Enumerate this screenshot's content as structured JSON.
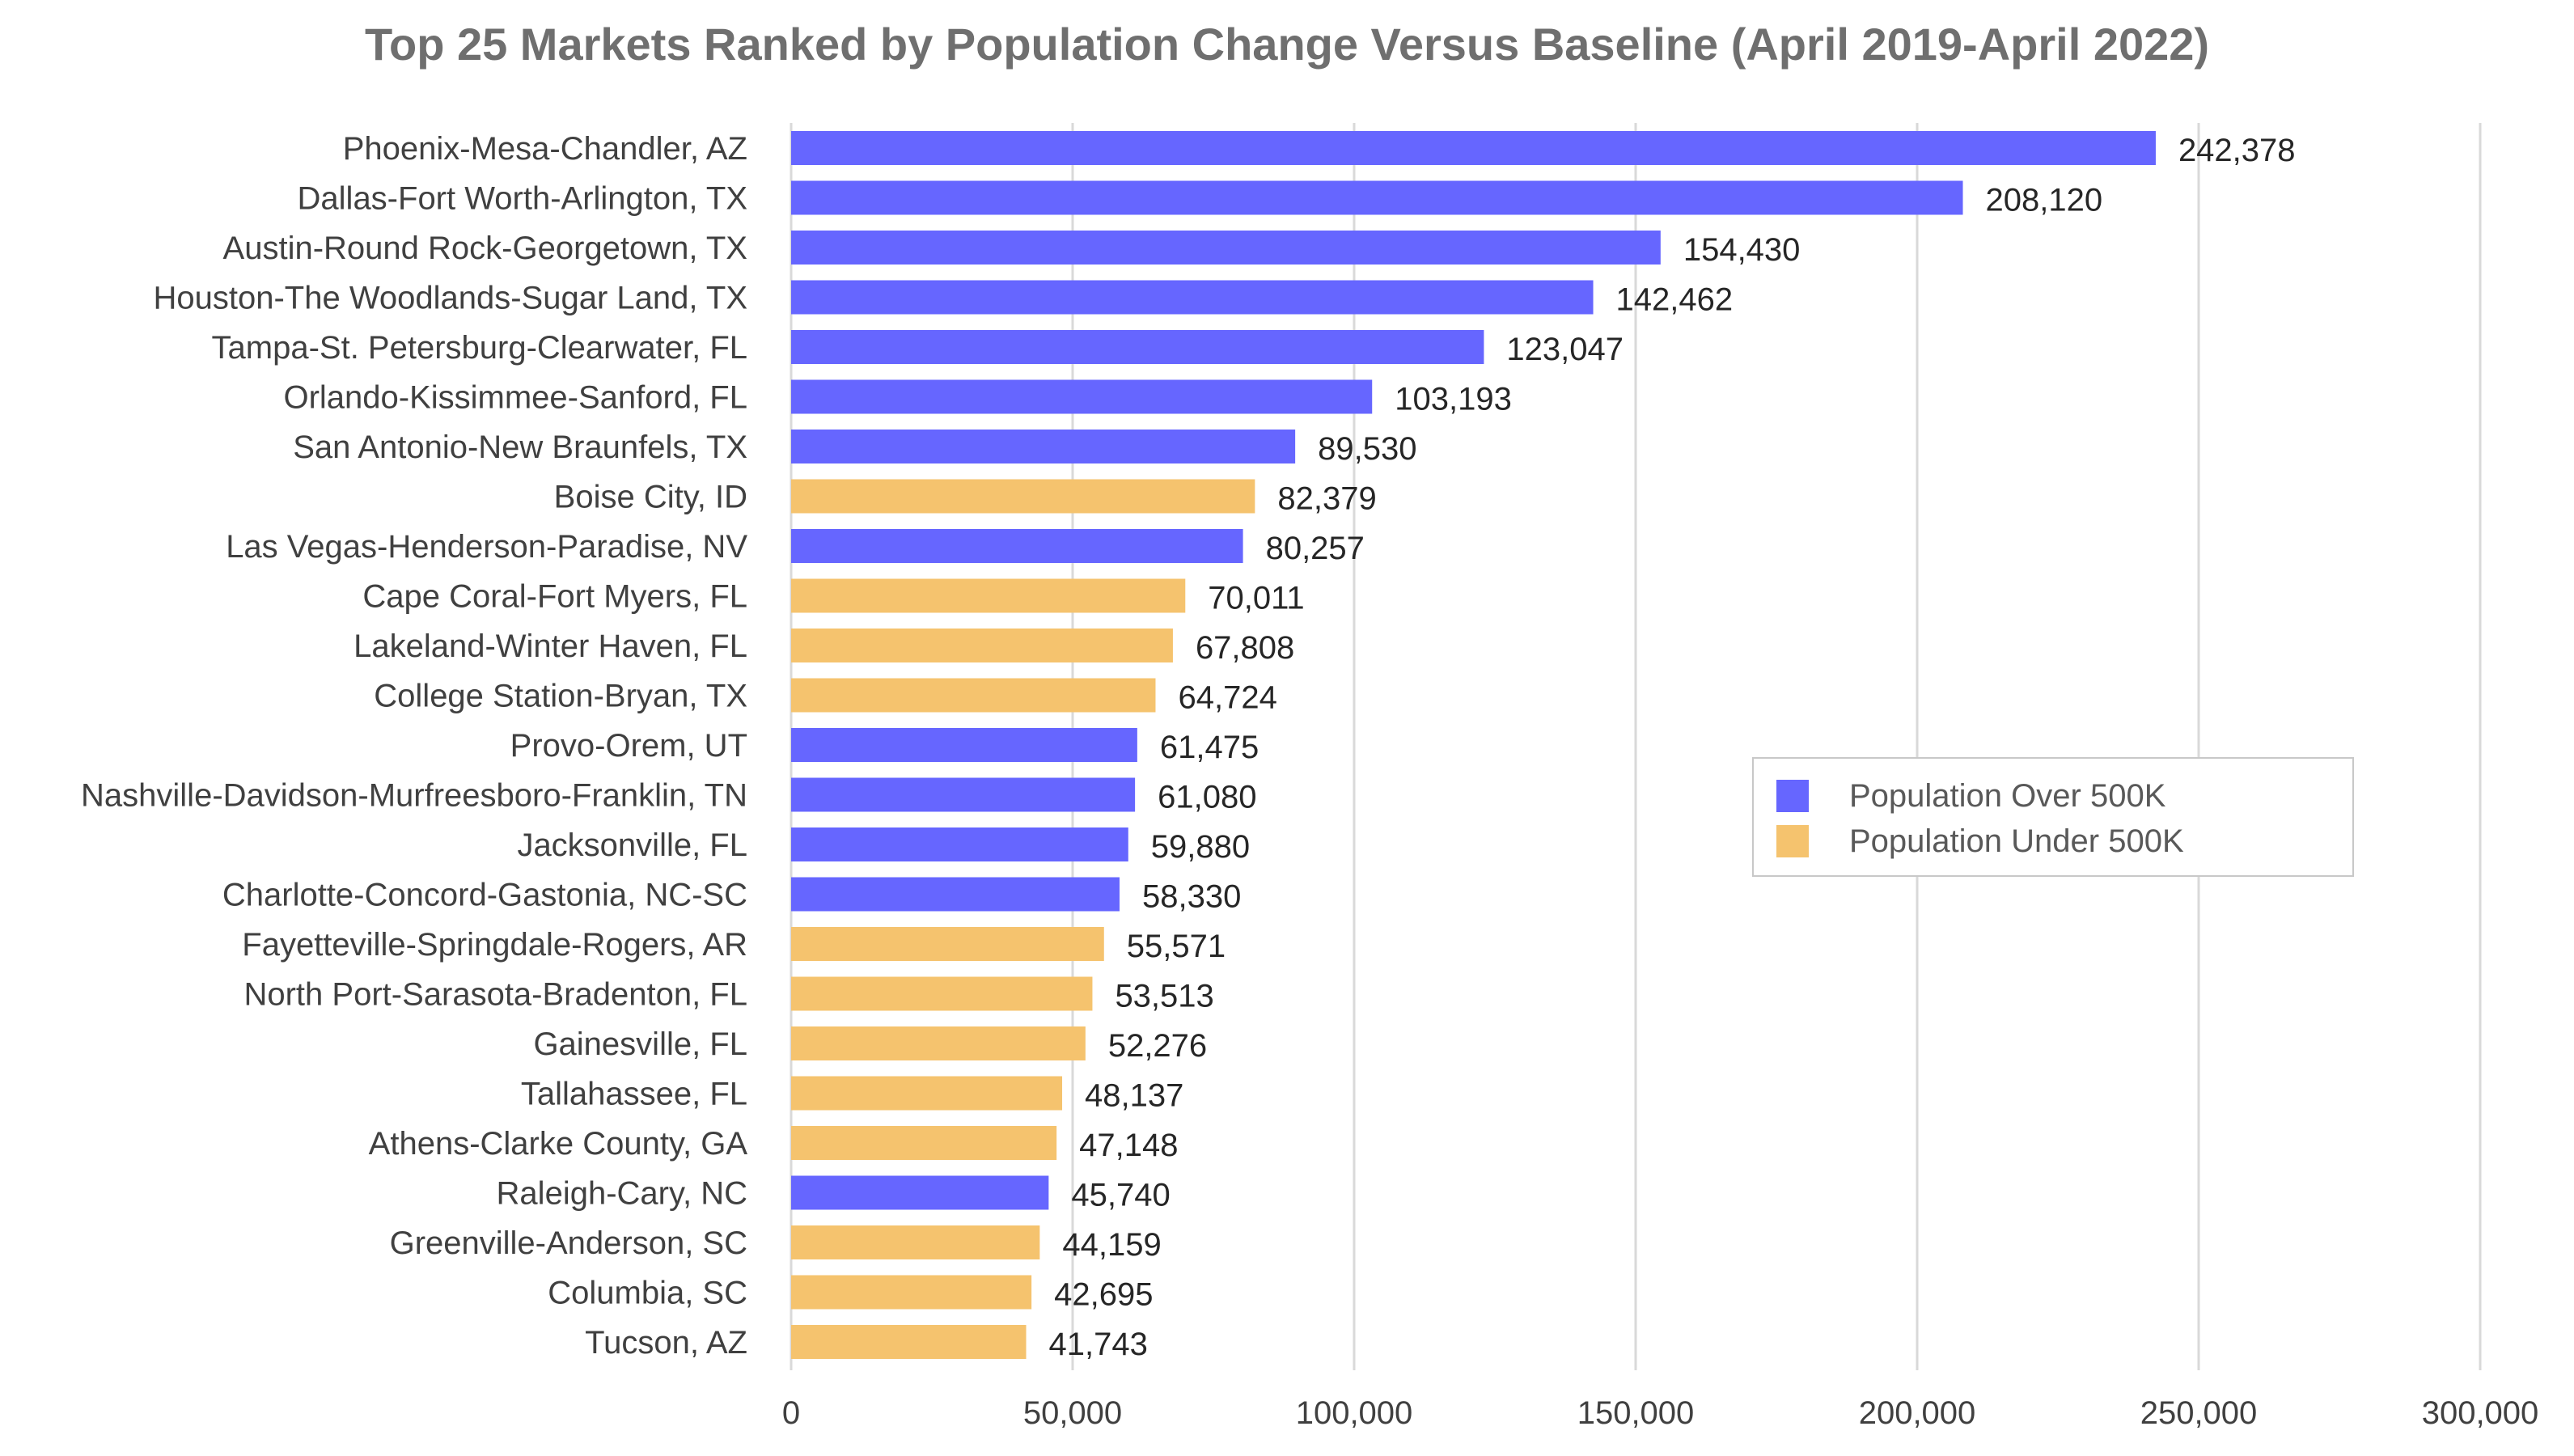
{
  "chart_data": {
    "type": "bar",
    "orientation": "horizontal",
    "title": "Top 25 Markets Ranked by Population Change Versus Baseline (April 2019-April 2022)",
    "xlim": [
      0,
      300000
    ],
    "xticks": [
      0,
      50000,
      100000,
      150000,
      200000,
      250000,
      300000
    ],
    "xtick_labels": [
      "0",
      "50,000",
      "100,000",
      "150,000",
      "200,000",
      "250,000",
      "300,000"
    ],
    "grid": true,
    "legend_position": "right",
    "series": [
      {
        "name": "Population Over 500K",
        "color": "#6666ff"
      },
      {
        "name": "Population Under 500K",
        "color": "#f5c36e"
      }
    ],
    "bars": [
      {
        "category": "Phoenix-Mesa-Chandler, AZ",
        "value": 242378,
        "label": "242,378",
        "series": 0
      },
      {
        "category": "Dallas-Fort Worth-Arlington, TX",
        "value": 208120,
        "label": "208,120",
        "series": 0
      },
      {
        "category": "Austin-Round Rock-Georgetown, TX",
        "value": 154430,
        "label": "154,430",
        "series": 0
      },
      {
        "category": "Houston-The Woodlands-Sugar Land, TX",
        "value": 142462,
        "label": "142,462",
        "series": 0
      },
      {
        "category": "Tampa-St. Petersburg-Clearwater, FL",
        "value": 123047,
        "label": "123,047",
        "series": 0
      },
      {
        "category": "Orlando-Kissimmee-Sanford, FL",
        "value": 103193,
        "label": "103,193",
        "series": 0
      },
      {
        "category": "San Antonio-New Braunfels, TX",
        "value": 89530,
        "label": "89,530",
        "series": 0
      },
      {
        "category": "Boise City, ID",
        "value": 82379,
        "label": "82,379",
        "series": 1
      },
      {
        "category": "Las Vegas-Henderson-Paradise, NV",
        "value": 80257,
        "label": "80,257",
        "series": 0
      },
      {
        "category": "Cape Coral-Fort Myers, FL",
        "value": 70011,
        "label": "70,011",
        "series": 1
      },
      {
        "category": "Lakeland-Winter Haven, FL",
        "value": 67808,
        "label": "67,808",
        "series": 1
      },
      {
        "category": "College Station-Bryan, TX",
        "value": 64724,
        "label": "64,724",
        "series": 1
      },
      {
        "category": "Provo-Orem, UT",
        "value": 61475,
        "label": "61,475",
        "series": 0
      },
      {
        "category": "Nashville-Davidson-Murfreesboro-Franklin, TN",
        "value": 61080,
        "label": "61,080",
        "series": 0
      },
      {
        "category": "Jacksonville, FL",
        "value": 59880,
        "label": "59,880",
        "series": 0
      },
      {
        "category": "Charlotte-Concord-Gastonia, NC-SC",
        "value": 58330,
        "label": "58,330",
        "series": 0
      },
      {
        "category": "Fayetteville-Springdale-Rogers, AR",
        "value": 55571,
        "label": "55,571",
        "series": 1
      },
      {
        "category": "North Port-Sarasota-Bradenton, FL",
        "value": 53513,
        "label": "53,513",
        "series": 1
      },
      {
        "category": "Gainesville, FL",
        "value": 52276,
        "label": "52,276",
        "series": 1
      },
      {
        "category": "Tallahassee, FL",
        "value": 48137,
        "label": "48,137",
        "series": 1
      },
      {
        "category": "Athens-Clarke County, GA",
        "value": 47148,
        "label": "47,148",
        "series": 1
      },
      {
        "category": "Raleigh-Cary, NC",
        "value": 45740,
        "label": "45,740",
        "series": 0
      },
      {
        "category": "Greenville-Anderson, SC",
        "value": 44159,
        "label": "44,159",
        "series": 1
      },
      {
        "category": "Columbia, SC",
        "value": 42695,
        "label": "42,695",
        "series": 1
      },
      {
        "category": "Tucson, AZ",
        "value": 41743,
        "label": "41,743",
        "series": 1
      }
    ]
  }
}
